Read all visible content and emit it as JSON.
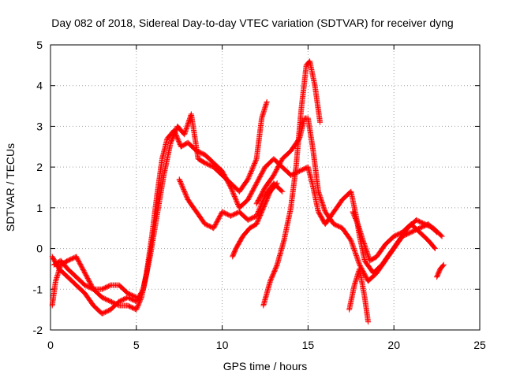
{
  "chart_data": {
    "type": "scatter",
    "title": "Day 082 of 2018, Sidereal Day-to-day VTEC variation (SDTVAR) for receiver dyng",
    "xlabel": "GPS time / hours",
    "ylabel": "SDTVAR / TECUs",
    "xlim": [
      0,
      25
    ],
    "ylim": [
      -2,
      5
    ],
    "xticks": [
      "0",
      "5",
      "10",
      "15",
      "20",
      "25"
    ],
    "yticks": [
      "-2",
      "-1",
      "0",
      "1",
      "2",
      "3",
      "4",
      "5"
    ],
    "grid": true,
    "marker": "+",
    "color": "#ff0000",
    "series": [
      {
        "points": [
          [
            0.1,
            -1.4
          ],
          [
            0.3,
            -0.8
          ],
          [
            0.6,
            -0.4
          ],
          [
            1.0,
            -0.3
          ],
          [
            1.5,
            -0.2
          ],
          [
            2.0,
            -0.6
          ],
          [
            2.5,
            -1.0
          ],
          [
            3.0,
            -1.2
          ],
          [
            3.5,
            -1.3
          ],
          [
            4.0,
            -1.4
          ],
          [
            4.5,
            -1.4
          ],
          [
            5.0,
            -1.5
          ],
          [
            5.3,
            -1.2
          ],
          [
            5.6,
            -0.6
          ],
          [
            5.9,
            0.3
          ],
          [
            6.2,
            1.3
          ],
          [
            6.5,
            2.2
          ],
          [
            6.8,
            2.7
          ],
          [
            7.2,
            2.9
          ],
          [
            7.6,
            2.5
          ],
          [
            8.0,
            2.6
          ],
          [
            8.5,
            2.4
          ],
          [
            9.0,
            2.3
          ],
          [
            9.5,
            2.1
          ],
          [
            10.0,
            1.9
          ],
          [
            10.5,
            1.5
          ],
          [
            11.0,
            1.0
          ],
          [
            11.5,
            1.2
          ],
          [
            12.0,
            1.6
          ],
          [
            12.5,
            2.0
          ],
          [
            13.0,
            2.2
          ],
          [
            13.5,
            2.0
          ],
          [
            14.0,
            1.8
          ],
          [
            14.5,
            1.9
          ],
          [
            15.0,
            2.0
          ],
          [
            15.3,
            1.5
          ],
          [
            15.6,
            0.9
          ],
          [
            16.0,
            0.6
          ],
          [
            16.5,
            0.9
          ],
          [
            17.0,
            1.2
          ],
          [
            17.5,
            1.4
          ],
          [
            17.8,
            0.8
          ],
          [
            18.0,
            0.3
          ],
          [
            18.3,
            -0.3
          ],
          [
            18.8,
            -0.6
          ],
          [
            19.3,
            -0.4
          ],
          [
            19.8,
            -0.1
          ],
          [
            20.3,
            0.2
          ],
          [
            20.8,
            0.5
          ],
          [
            21.3,
            0.7
          ],
          [
            21.8,
            0.6
          ],
          [
            22.3,
            0.5
          ],
          [
            22.8,
            0.3
          ]
        ]
      },
      {
        "points": [
          [
            0.1,
            -0.2
          ],
          [
            0.5,
            -0.5
          ],
          [
            1.0,
            -0.7
          ],
          [
            1.5,
            -0.9
          ],
          [
            2.0,
            -1.1
          ],
          [
            2.5,
            -1.4
          ],
          [
            3.0,
            -1.6
          ],
          [
            3.5,
            -1.5
          ],
          [
            4.0,
            -1.3
          ],
          [
            4.5,
            -1.2
          ],
          [
            5.0,
            -1.3
          ],
          [
            5.4,
            -1.0
          ],
          [
            5.8,
            -0.2
          ],
          [
            6.2,
            0.8
          ],
          [
            6.6,
            1.8
          ],
          [
            7.0,
            2.6
          ],
          [
            7.4,
            3.0
          ],
          [
            7.8,
            2.8
          ],
          [
            8.2,
            3.3
          ],
          [
            8.6,
            2.2
          ],
          [
            9.0,
            2.1
          ],
          [
            9.5,
            2.0
          ],
          [
            10.0,
            1.8
          ],
          [
            10.5,
            1.6
          ],
          [
            11.0,
            1.4
          ],
          [
            11.5,
            1.7
          ],
          [
            12.0,
            2.2
          ],
          [
            12.3,
            3.2
          ],
          [
            12.6,
            3.6
          ]
        ]
      },
      {
        "points": [
          [
            12.4,
            -1.4
          ],
          [
            12.8,
            -0.8
          ],
          [
            13.2,
            -0.4
          ],
          [
            13.6,
            0.2
          ],
          [
            14.0,
            1.0
          ],
          [
            14.3,
            2.0
          ],
          [
            14.6,
            3.4
          ],
          [
            14.9,
            4.5
          ],
          [
            15.1,
            4.6
          ],
          [
            15.4,
            4.0
          ],
          [
            15.7,
            3.1
          ]
        ]
      },
      {
        "points": [
          [
            12.0,
            1.1
          ],
          [
            12.5,
            1.5
          ],
          [
            13.0,
            1.8
          ],
          [
            13.5,
            2.2
          ],
          [
            14.0,
            2.4
          ],
          [
            14.5,
            2.7
          ],
          [
            14.8,
            3.2
          ],
          [
            15.0,
            3.2
          ],
          [
            15.3,
            2.4
          ],
          [
            15.6,
            1.4
          ],
          [
            16.0,
            0.9
          ],
          [
            16.5,
            0.6
          ],
          [
            17.0,
            0.5
          ],
          [
            17.5,
            0.2
          ],
          [
            18.0,
            -0.4
          ],
          [
            18.5,
            -0.8
          ],
          [
            19.0,
            -0.6
          ],
          [
            19.5,
            -0.3
          ],
          [
            20.0,
            0.0
          ],
          [
            20.5,
            0.3
          ],
          [
            21.0,
            0.4
          ],
          [
            21.5,
            0.5
          ],
          [
            22.0,
            0.6
          ],
          [
            22.5,
            0.4
          ]
        ]
      },
      {
        "points": [
          [
            7.5,
            1.7
          ],
          [
            8.0,
            1.2
          ],
          [
            8.5,
            0.9
          ],
          [
            9.0,
            0.6
          ],
          [
            9.5,
            0.5
          ],
          [
            10.0,
            0.9
          ],
          [
            10.5,
            0.8
          ],
          [
            11.0,
            0.9
          ],
          [
            11.5,
            0.7
          ],
          [
            12.0,
            0.8
          ],
          [
            12.5,
            1.3
          ],
          [
            13.0,
            1.6
          ],
          [
            13.5,
            1.4
          ]
        ]
      },
      {
        "points": [
          [
            10.6,
            -0.2
          ],
          [
            10.8,
            0.0
          ],
          [
            11.2,
            0.3
          ],
          [
            11.6,
            0.5
          ],
          [
            12.0,
            0.6
          ],
          [
            12.4,
            1.0
          ],
          [
            12.8,
            1.4
          ],
          [
            13.2,
            1.6
          ]
        ]
      },
      {
        "points": [
          [
            17.4,
            -1.5
          ],
          [
            17.7,
            -0.9
          ],
          [
            18.0,
            -0.5
          ],
          [
            18.3,
            -1.2
          ],
          [
            18.5,
            -1.8
          ]
        ]
      },
      {
        "points": [
          [
            0.2,
            -0.4
          ],
          [
            0.6,
            -0.3
          ],
          [
            1.0,
            -0.5
          ],
          [
            1.5,
            -0.7
          ],
          [
            2.0,
            -0.9
          ],
          [
            2.5,
            -1.0
          ],
          [
            3.0,
            -1.0
          ],
          [
            3.5,
            -0.9
          ],
          [
            4.0,
            -0.9
          ],
          [
            4.5,
            -1.1
          ],
          [
            5.0,
            -1.2
          ]
        ]
      },
      {
        "points": [
          [
            17.6,
            0.9
          ],
          [
            17.9,
            0.6
          ],
          [
            18.2,
            0.2
          ],
          [
            18.6,
            -0.3
          ],
          [
            19.0,
            -0.2
          ],
          [
            19.5,
            0.1
          ],
          [
            20.0,
            0.3
          ],
          [
            20.5,
            0.4
          ],
          [
            21.0,
            0.6
          ],
          [
            21.5,
            0.4
          ],
          [
            22.0,
            0.2
          ],
          [
            22.4,
            0.0
          ]
        ]
      },
      {
        "points": [
          [
            22.5,
            -0.7
          ],
          [
            22.7,
            -0.5
          ],
          [
            22.9,
            -0.4
          ]
        ]
      }
    ]
  }
}
